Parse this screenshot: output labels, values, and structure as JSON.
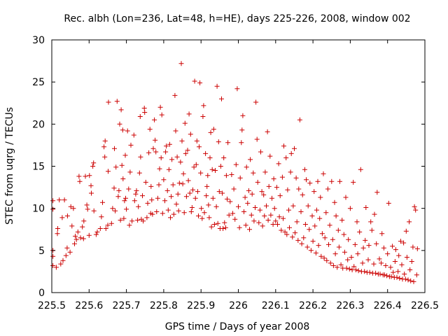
{
  "chart_data": {
    "type": "scatter",
    "title": "Rec. albh (Lon=236, Lat=48, h=HE), days 225-226, 2008, window 002",
    "xlabel": "GPS time / Days of year 2008",
    "ylabel": "STEC from uqrg / TECUs",
    "xlim": [
      225.5,
      226.5
    ],
    "ylim": [
      0,
      30
    ],
    "xticks": [
      "225.5",
      "225.6",
      "225.7",
      "225.8",
      "225.9",
      "226",
      "226.1",
      "226.2",
      "226.3",
      "226.4",
      "226.5"
    ],
    "yticks": [
      "0",
      "5",
      "10",
      "15",
      "20",
      "25",
      "30"
    ],
    "grid": false,
    "legend": "none",
    "marker": "plus",
    "series_color": "#cc0000",
    "points": [
      [
        225.503,
        3.2
      ],
      [
        225.503,
        4.3
      ],
      [
        225.503,
        5.0
      ],
      [
        225.503,
        10.9
      ],
      [
        225.503,
        9.9
      ],
      [
        225.512,
        3.0
      ],
      [
        225.515,
        7.0
      ],
      [
        225.516,
        7.6
      ],
      [
        225.52,
        11.0
      ],
      [
        225.524,
        3.4
      ],
      [
        225.528,
        8.9
      ],
      [
        225.53,
        3.8
      ],
      [
        225.534,
        11.0
      ],
      [
        225.538,
        4.4
      ],
      [
        225.541,
        5.3
      ],
      [
        225.542,
        9.1
      ],
      [
        225.549,
        4.8
      ],
      [
        225.551,
        10.2
      ],
      [
        225.554,
        7.9
      ],
      [
        225.558,
        10.0
      ],
      [
        225.561,
        5.8
      ],
      [
        225.563,
        6.7
      ],
      [
        225.566,
        6.3
      ],
      [
        225.57,
        7.2
      ],
      [
        225.573,
        13.8
      ],
      [
        225.575,
        13.2
      ],
      [
        225.577,
        6.5
      ],
      [
        225.582,
        7.8
      ],
      [
        225.585,
        6.4
      ],
      [
        225.586,
        8.5
      ],
      [
        225.59,
        13.8
      ],
      [
        225.594,
        10.4
      ],
      [
        225.596,
        9.9
      ],
      [
        225.6,
        6.8
      ],
      [
        225.601,
        13.9
      ],
      [
        225.605,
        12.7
      ],
      [
        225.606,
        11.8
      ],
      [
        225.61,
        15.0
      ],
      [
        225.612,
        15.4
      ],
      [
        225.613,
        9.7
      ],
      [
        225.619,
        6.9
      ],
      [
        225.622,
        7.2
      ],
      [
        225.63,
        7.6
      ],
      [
        225.633,
        9.0
      ],
      [
        225.636,
        10.7
      ],
      [
        225.64,
        17.3
      ],
      [
        225.642,
        16.1
      ],
      [
        225.643,
        18.0
      ],
      [
        225.645,
        7.6
      ],
      [
        225.65,
        8.0
      ],
      [
        225.651,
        14.4
      ],
      [
        225.652,
        22.6
      ],
      [
        225.66,
        8.2
      ],
      [
        225.663,
        10.0
      ],
      [
        225.667,
        12.4
      ],
      [
        225.668,
        17.1
      ],
      [
        225.67,
        9.7
      ],
      [
        225.672,
        14.9
      ],
      [
        225.675,
        22.7
      ],
      [
        225.678,
        11.4
      ],
      [
        225.68,
        12.1
      ],
      [
        225.682,
        20.0
      ],
      [
        225.684,
        8.6
      ],
      [
        225.686,
        21.7
      ],
      [
        225.688,
        15.1
      ],
      [
        225.69,
        19.3
      ],
      [
        225.691,
        13.5
      ],
      [
        225.693,
        8.8
      ],
      [
        225.695,
        10.9
      ],
      [
        225.697,
        16.3
      ],
      [
        225.698,
        11.2
      ],
      [
        225.7,
        9.9
      ],
      [
        225.703,
        19.2
      ],
      [
        225.706,
        12.3
      ],
      [
        225.708,
        8.0
      ],
      [
        225.71,
        14.3
      ],
      [
        225.712,
        17.5
      ],
      [
        225.715,
        8.5
      ],
      [
        225.72,
        18.7
      ],
      [
        225.722,
        10.9
      ],
      [
        225.725,
        11.7
      ],
      [
        225.727,
        12.1
      ],
      [
        225.73,
        8.6
      ],
      [
        225.732,
        10.2
      ],
      [
        225.735,
        14.2
      ],
      [
        225.737,
        20.9
      ],
      [
        225.738,
        16.1
      ],
      [
        225.74,
        8.7
      ],
      [
        225.743,
        11.5
      ],
      [
        225.745,
        8.5
      ],
      [
        225.748,
        21.9
      ],
      [
        225.749,
        21.4
      ],
      [
        225.752,
        13.1
      ],
      [
        225.755,
        8.9
      ],
      [
        225.757,
        10.6
      ],
      [
        225.76,
        16.6
      ],
      [
        225.763,
        19.4
      ],
      [
        225.765,
        9.4
      ],
      [
        225.766,
        12.6
      ],
      [
        225.768,
        11.0
      ],
      [
        225.77,
        9.3
      ],
      [
        225.772,
        17.1
      ],
      [
        225.775,
        20.5
      ],
      [
        225.777,
        18.1
      ],
      [
        225.779,
        16.7
      ],
      [
        225.781,
        9.6
      ],
      [
        225.784,
        11.2
      ],
      [
        225.787,
        12.8
      ],
      [
        225.789,
        14.7
      ],
      [
        225.791,
        22.0
      ],
      [
        225.793,
        16.0
      ],
      [
        225.795,
        21.1
      ],
      [
        225.797,
        9.4
      ],
      [
        225.8,
        13.4
      ],
      [
        225.803,
        10.9
      ],
      [
        225.805,
        16.7
      ],
      [
        225.807,
        17.4
      ],
      [
        225.81,
        12.1
      ],
      [
        225.812,
        9.8
      ],
      [
        225.814,
        14.6
      ],
      [
        225.816,
        17.6
      ],
      [
        225.818,
        8.9
      ],
      [
        225.82,
        11.4
      ],
      [
        225.822,
        15.8
      ],
      [
        225.825,
        12.8
      ],
      [
        225.827,
        9.3
      ],
      [
        225.83,
        23.4
      ],
      [
        225.832,
        19.2
      ],
      [
        225.834,
        10.5
      ],
      [
        225.836,
        16.1
      ],
      [
        225.838,
        11.7
      ],
      [
        225.84,
        9.7
      ],
      [
        225.842,
        13.0
      ],
      [
        225.845,
        15.5
      ],
      [
        225.847,
        27.2
      ],
      [
        225.849,
        18.0
      ],
      [
        225.851,
        12.9
      ],
      [
        225.853,
        14.1
      ],
      [
        225.855,
        9.5
      ],
      [
        225.857,
        20.1
      ],
      [
        225.859,
        16.5
      ],
      [
        225.861,
        11.4
      ],
      [
        225.864,
        16.9
      ],
      [
        225.866,
        13.3
      ],
      [
        225.868,
        21.2
      ],
      [
        225.87,
        11.8
      ],
      [
        225.872,
        18.8
      ],
      [
        225.874,
        9.6
      ],
      [
        225.876,
        10.1
      ],
      [
        225.878,
        12.2
      ],
      [
        225.881,
        14.9
      ],
      [
        225.883,
        25.1
      ],
      [
        225.885,
        11.2
      ],
      [
        225.887,
        15.2
      ],
      [
        225.889,
        18.0
      ],
      [
        225.891,
        12.0
      ],
      [
        225.893,
        9.1
      ],
      [
        225.895,
        17.3
      ],
      [
        225.897,
        24.9
      ],
      [
        225.899,
        14.2
      ],
      [
        225.901,
        10.0
      ],
      [
        225.903,
        8.8
      ],
      [
        225.905,
        20.9
      ],
      [
        225.907,
        22.2
      ],
      [
        225.909,
        9.5
      ],
      [
        225.912,
        16.5
      ],
      [
        225.914,
        11.5
      ],
      [
        225.916,
        12.6
      ],
      [
        225.918,
        13.9
      ],
      [
        225.92,
        10.4
      ],
      [
        225.922,
        8.9
      ],
      [
        225.924,
        16.0
      ],
      [
        225.926,
        19.0
      ],
      [
        225.928,
        7.8
      ],
      [
        225.93,
        14.6
      ],
      [
        225.932,
        11.2
      ],
      [
        225.934,
        19.4
      ],
      [
        225.936,
        8.1
      ],
      [
        225.938,
        14.5
      ],
      [
        225.941,
        10.2
      ],
      [
        225.943,
        24.5
      ],
      [
        225.945,
        8.2
      ],
      [
        225.947,
        17.9
      ],
      [
        225.949,
        12.0
      ],
      [
        225.951,
        7.6
      ],
      [
        225.953,
        15.0
      ],
      [
        225.955,
        23.0
      ],
      [
        225.957,
        11.8
      ],
      [
        225.959,
        7.6
      ],
      [
        225.961,
        16.0
      ],
      [
        225.963,
        8.3
      ],
      [
        225.966,
        7.7
      ],
      [
        225.968,
        13.9
      ],
      [
        225.97,
        11.1
      ],
      [
        225.972,
        17.8
      ],
      [
        225.975,
        9.2
      ],
      [
        225.978,
        10.8
      ],
      [
        225.982,
        14.0
      ],
      [
        225.985,
        9.4
      ],
      [
        225.988,
        12.3
      ],
      [
        225.991,
        8.7
      ],
      [
        225.994,
        15.2
      ],
      [
        225.997,
        24.2
      ],
      [
        226.0,
        10.2
      ],
      [
        226.003,
        7.7
      ],
      [
        226.005,
        13.6
      ],
      [
        226.008,
        17.8
      ],
      [
        226.01,
        19.3
      ],
      [
        226.012,
        21.0
      ],
      [
        226.015,
        9.6
      ],
      [
        226.018,
        11.3
      ],
      [
        226.02,
        8.0
      ],
      [
        226.022,
        14.9
      ],
      [
        226.025,
        10.6
      ],
      [
        226.028,
        12.1
      ],
      [
        226.03,
        7.5
      ],
      [
        226.032,
        15.8
      ],
      [
        226.035,
        9.2
      ],
      [
        226.037,
        11.7
      ],
      [
        226.04,
        14.2
      ],
      [
        226.042,
        8.5
      ],
      [
        226.045,
        10.1
      ],
      [
        226.047,
        22.6
      ],
      [
        226.05,
        18.2
      ],
      [
        226.052,
        13.1
      ],
      [
        226.055,
        8.3
      ],
      [
        226.058,
        9.8
      ],
      [
        226.06,
        16.7
      ],
      [
        226.063,
        12.0
      ],
      [
        226.065,
        7.9
      ],
      [
        226.068,
        11.6
      ],
      [
        226.07,
        9.1
      ],
      [
        226.072,
        14.3
      ],
      [
        226.075,
        10.3
      ],
      [
        226.078,
        19.1
      ],
      [
        226.08,
        8.6
      ],
      [
        226.082,
        12.6
      ],
      [
        226.085,
        16.2
      ],
      [
        226.087,
        9.2
      ],
      [
        226.09,
        11.2
      ],
      [
        226.093,
        8.1
      ],
      [
        226.095,
        13.5
      ],
      [
        226.097,
        10.0
      ],
      [
        226.1,
        8.5
      ],
      [
        226.103,
        12.5
      ],
      [
        226.105,
        8.1
      ],
      [
        226.108,
        15.3
      ],
      [
        226.11,
        9.0
      ],
      [
        226.112,
        11.5
      ],
      [
        226.115,
        7.4
      ],
      [
        226.118,
        13.7
      ],
      [
        226.12,
        8.8
      ],
      [
        226.122,
        17.4
      ],
      [
        226.125,
        7.2
      ],
      [
        226.128,
        16.0
      ],
      [
        226.13,
        6.9
      ],
      [
        226.132,
        12.2
      ],
      [
        226.135,
        9.8
      ],
      [
        226.137,
        7.7
      ],
      [
        226.14,
        14.3
      ],
      [
        226.142,
        16.5
      ],
      [
        226.145,
        6.6
      ],
      [
        226.147,
        10.3
      ],
      [
        226.15,
        17.1
      ],
      [
        226.152,
        7.1
      ],
      [
        226.155,
        13.6
      ],
      [
        226.157,
        8.4
      ],
      [
        226.16,
        6.2
      ],
      [
        226.162,
        12.3
      ],
      [
        226.165,
        20.5
      ],
      [
        226.168,
        9.6
      ],
      [
        226.17,
        5.8
      ],
      [
        226.172,
        11.6
      ],
      [
        226.175,
        6.5
      ],
      [
        226.178,
        14.6
      ],
      [
        226.18,
        8.1
      ],
      [
        226.182,
        13.4
      ],
      [
        226.185,
        5.4
      ],
      [
        226.187,
        10.3
      ],
      [
        226.19,
        7.5
      ],
      [
        226.192,
        13.0
      ],
      [
        226.195,
        5.0
      ],
      [
        226.198,
        9.1
      ],
      [
        226.2,
        6.1
      ],
      [
        226.203,
        12.0
      ],
      [
        226.205,
        7.9
      ],
      [
        226.208,
        4.7
      ],
      [
        226.21,
        9.8
      ],
      [
        226.213,
        13.2
      ],
      [
        226.215,
        5.6
      ],
      [
        226.218,
        8.8
      ],
      [
        226.22,
        11.3
      ],
      [
        226.222,
        4.3
      ],
      [
        226.225,
        7.0
      ],
      [
        226.228,
        14.1
      ],
      [
        226.23,
        4.1
      ],
      [
        226.232,
        6.5
      ],
      [
        226.235,
        9.5
      ],
      [
        226.237,
        3.8
      ],
      [
        226.24,
        12.3
      ],
      [
        226.242,
        5.7
      ],
      [
        226.245,
        8.0
      ],
      [
        226.247,
        3.5
      ],
      [
        226.25,
        13.2
      ],
      [
        226.253,
        6.3
      ],
      [
        226.255,
        3.2
      ],
      [
        226.258,
        10.7
      ],
      [
        226.26,
        4.6
      ],
      [
        226.262,
        9.1
      ],
      [
        226.265,
        3.0
      ],
      [
        226.268,
        7.4
      ],
      [
        226.27,
        5.4
      ],
      [
        226.272,
        13.2
      ],
      [
        226.275,
        3.3
      ],
      [
        226.278,
        8.6
      ],
      [
        226.28,
        2.9
      ],
      [
        226.283,
        6.9
      ],
      [
        226.285,
        4.8
      ],
      [
        226.288,
        11.3
      ],
      [
        226.29,
        2.9
      ],
      [
        226.293,
        3.9
      ],
      [
        226.295,
        6.3
      ],
      [
        226.298,
        2.8
      ],
      [
        226.3,
        10.0
      ],
      [
        226.303,
        4.2
      ],
      [
        226.305,
        2.7
      ],
      [
        226.308,
        13.1
      ],
      [
        226.31,
        3.1
      ],
      [
        226.313,
        5.7
      ],
      [
        226.315,
        2.7
      ],
      [
        226.318,
        8.4
      ],
      [
        226.32,
        4.6
      ],
      [
        226.322,
        2.6
      ],
      [
        226.325,
        7.2
      ],
      [
        226.328,
        14.6
      ],
      [
        226.33,
        2.5
      ],
      [
        226.333,
        3.5
      ],
      [
        226.335,
        5.3
      ],
      [
        226.338,
        2.5
      ],
      [
        226.34,
        6.2
      ],
      [
        226.342,
        10.1
      ],
      [
        226.345,
        2.4
      ],
      [
        226.348,
        3.9
      ],
      [
        226.35,
        5.6
      ],
      [
        226.352,
        2.4
      ],
      [
        226.355,
        8.4
      ],
      [
        226.358,
        7.4
      ],
      [
        226.36,
        2.3
      ],
      [
        226.363,
        3.4
      ],
      [
        226.365,
        9.3
      ],
      [
        226.368,
        2.3
      ],
      [
        226.37,
        5.8
      ],
      [
        226.372,
        11.9
      ],
      [
        226.375,
        2.2
      ],
      [
        226.378,
        4.0
      ],
      [
        226.38,
        2.2
      ],
      [
        226.383,
        3.5
      ],
      [
        226.385,
        7.0
      ],
      [
        226.388,
        2.1
      ],
      [
        226.39,
        5.3
      ],
      [
        226.392,
        2.1
      ],
      [
        226.395,
        3.2
      ],
      [
        226.398,
        2.0
      ],
      [
        226.4,
        4.6
      ],
      [
        226.403,
        10.6
      ],
      [
        226.405,
        1.9
      ],
      [
        226.408,
        3.0
      ],
      [
        226.41,
        1.9
      ],
      [
        226.413,
        5.5
      ],
      [
        226.415,
        2.4
      ],
      [
        226.418,
        1.8
      ],
      [
        226.42,
        3.7
      ],
      [
        226.422,
        5.1
      ],
      [
        226.425,
        1.8
      ],
      [
        226.428,
        2.5
      ],
      [
        226.43,
        4.4
      ],
      [
        226.432,
        1.7
      ],
      [
        226.435,
        6.1
      ],
      [
        226.438,
        3.3
      ],
      [
        226.44,
        1.6
      ],
      [
        226.443,
        5.9
      ],
      [
        226.445,
        2.2
      ],
      [
        226.448,
        1.6
      ],
      [
        226.45,
        7.3
      ],
      [
        226.452,
        4.2
      ],
      [
        226.455,
        1.5
      ],
      [
        226.458,
        8.4
      ],
      [
        226.46,
        2.7
      ],
      [
        226.462,
        1.4
      ],
      [
        226.465,
        3.7
      ],
      [
        226.468,
        5.4
      ],
      [
        226.47,
        1.3
      ],
      [
        226.472,
        10.2
      ],
      [
        226.475,
        9.8
      ],
      [
        226.478,
        2.1
      ],
      [
        226.48,
        5.2
      ]
    ]
  }
}
